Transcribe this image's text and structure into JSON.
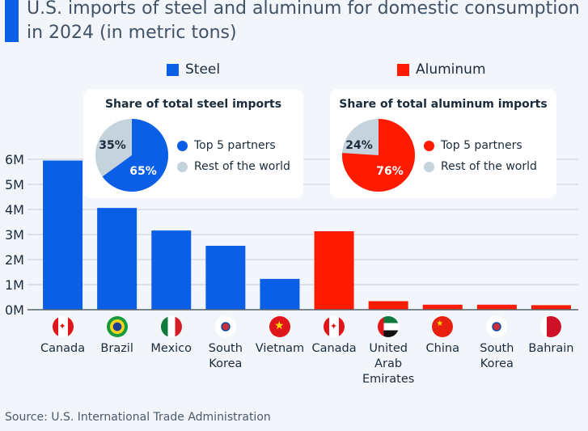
{
  "title": "U.S. imports of steel and aluminum for domestic consumption in 2024 (in metric tons)",
  "source": "Source: U.S. International Trade Administration",
  "colors": {
    "steel": "#0a5fe6",
    "aluminum": "#ff1a00",
    "rest": "#c5d3dd",
    "grid": "#c8ced6"
  },
  "legend": {
    "steel": "Steel",
    "aluminum": "Aluminum"
  },
  "insets": [
    {
      "title": "Share of total steel imports",
      "top5_pct": 65,
      "rest_pct": 35,
      "top5_label": "65%",
      "rest_label": "35%",
      "legend_top5": "Top 5 partners",
      "legend_rest": "Rest of the world"
    },
    {
      "title": "Share of total aluminum imports",
      "top5_pct": 76,
      "rest_pct": 24,
      "top5_label": "76%",
      "rest_label": "24%",
      "legend_top5": "Top 5 partners",
      "legend_rest": "Rest of the world"
    }
  ],
  "chart_data": {
    "type": "bar",
    "title": "U.S. imports of steel and aluminum for domestic consumption in 2024 (in metric tons)",
    "xlabel": "",
    "ylabel": "",
    "ylim": [
      0,
      6000000
    ],
    "yticks": [
      "0M",
      "1M",
      "2M",
      "3M",
      "4M",
      "5M",
      "6M"
    ],
    "grid": true,
    "legend_position": "top",
    "categories": [
      "Canada",
      "Brazil",
      "Mexico",
      "South Korea",
      "Vietnam",
      "Canada",
      "United Arab Emirates",
      "China",
      "South Korea",
      "Bahrain"
    ],
    "label_lines": [
      [
        "Canada"
      ],
      [
        "Brazil"
      ],
      [
        "Mexico"
      ],
      [
        "South",
        "Korea"
      ],
      [
        "Vietnam"
      ],
      [
        "Canada"
      ],
      [
        "United",
        "Arab",
        "Emirates"
      ],
      [
        "China"
      ],
      [
        "South",
        "Korea"
      ],
      [
        "Bahrain"
      ]
    ],
    "flags": [
      "canada-flag",
      "brazil-flag",
      "mexico-flag",
      "south-korea-flag",
      "vietnam-flag",
      "canada-flag",
      "uae-flag",
      "china-flag",
      "south-korea-flag",
      "bahrain-flag"
    ],
    "series": [
      {
        "name": "Steel",
        "values": [
          5950000,
          4060000,
          3160000,
          2550000,
          1230000,
          null,
          null,
          null,
          null,
          null
        ]
      },
      {
        "name": "Aluminum",
        "values": [
          null,
          null,
          null,
          null,
          null,
          3130000,
          340000,
          200000,
          200000,
          180000
        ]
      }
    ]
  }
}
